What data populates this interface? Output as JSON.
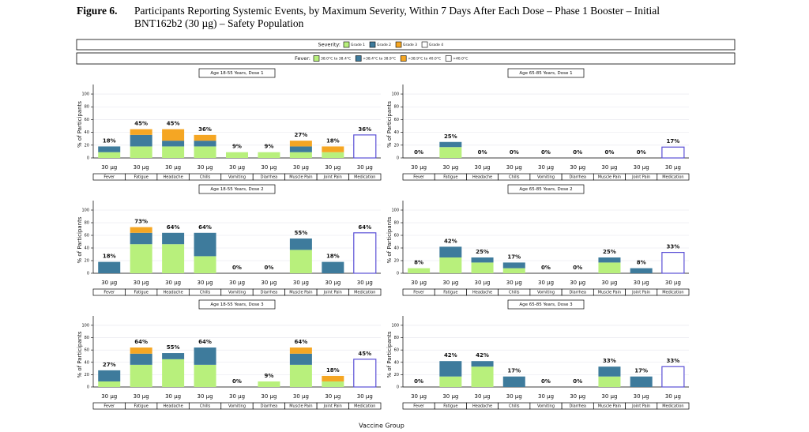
{
  "figure": {
    "label": "Figure 6.",
    "caption": "Participants Reporting Systemic Events, by Maximum Severity, Within 7 Days After Each Dose – Phase 1 Booster – Initial BNT162b2 (30 µg) – Safety Population"
  },
  "legend": {
    "severity": {
      "label": "Severity:",
      "items": [
        {
          "name": "Grade 1",
          "color": "#b8f07c"
        },
        {
          "name": "Grade 2",
          "color": "#3e7b9c"
        },
        {
          "name": "Grade 3",
          "color": "#f5a623"
        },
        {
          "name": "Grade 4",
          "color": "#ffffff"
        }
      ]
    },
    "fever": {
      "label": "Fever:",
      "items": [
        "38.0°C to 38.4°C",
        ">38.4°C to 38.9°C",
        ">38.9°C to 40.0°C",
        ">40.0°C"
      ]
    }
  },
  "x_axis_title": "Vaccine Group",
  "chart_data": [
    {
      "type": "stacked_bar",
      "title": "Age 18-55 Years, Dose 1",
      "y_label": "% of Participants",
      "categories": [
        "Fever",
        "Fatigue",
        "Headache",
        "Chills",
        "Vomiting",
        "Diarrhea",
        "Muscle Pain",
        "Joint Pain",
        "Medication"
      ],
      "groups": [
        "30 µg",
        "30 µg",
        "30 µg",
        "30 µg",
        "30 µg",
        "30 µg",
        "30 µg",
        "30 µg",
        "30 µg"
      ],
      "ylim": [
        0,
        105
      ],
      "yticks": [
        0,
        20,
        40,
        60,
        80,
        100
      ],
      "grid": true,
      "series": [
        {
          "values": [
            9,
            18,
            18,
            18,
            9,
            9,
            9,
            9,
            null
          ]
        },
        {
          "values": [
            9,
            18,
            9,
            9,
            0,
            0,
            9,
            0,
            null
          ]
        },
        {
          "values": [
            0,
            9,
            18,
            9,
            0,
            0,
            9,
            9,
            null
          ]
        },
        {
          "color": "#5a4fd6",
          "outline": true,
          "values": [
            null,
            null,
            null,
            null,
            null,
            null,
            null,
            null,
            36
          ]
        }
      ],
      "totals": {
        "values": [
          18,
          45,
          45,
          36,
          9,
          9,
          27,
          18,
          36
        ],
        "value_labels": [
          "18%",
          "45%",
          "45%",
          "36%",
          "9%",
          "9%",
          "27%",
          "18%",
          "36%"
        ]
      }
    },
    {
      "type": "stacked_bar",
      "title": "Age 65-85 Years, Dose 1",
      "y_label": "% of Participants",
      "categories": [
        "Fever",
        "Fatigue",
        "Headache",
        "Chills",
        "Vomiting",
        "Diarrhea",
        "Muscle Pain",
        "Joint Pain",
        "Medication"
      ],
      "groups": [
        "30 µg",
        "30 µg",
        "30 µg",
        "30 µg",
        "30 µg",
        "30 µg",
        "30 µg",
        "30 µg",
        "30 µg"
      ],
      "ylim": [
        0,
        105
      ],
      "yticks": [
        0,
        20,
        40,
        60,
        80,
        100
      ],
      "grid": true,
      "series": [
        {
          "values": [
            0,
            17,
            0,
            0,
            0,
            0,
            0,
            0,
            null
          ]
        },
        {
          "values": [
            0,
            8,
            0,
            0,
            0,
            0,
            0,
            0,
            null
          ]
        },
        {
          "values": [
            0,
            0,
            0,
            0,
            0,
            0,
            0,
            0,
            null
          ]
        },
        {
          "color": "#5a4fd6",
          "outline": true,
          "values": [
            null,
            null,
            null,
            null,
            null,
            null,
            null,
            null,
            17
          ]
        }
      ],
      "totals": {
        "values": [
          0,
          25,
          0,
          0,
          0,
          0,
          0,
          0,
          17
        ],
        "value_labels": [
          "0%",
          "25%",
          "0%",
          "0%",
          "0%",
          "0%",
          "0%",
          "0%",
          "17%"
        ]
      }
    },
    {
      "type": "stacked_bar",
      "title": "Age 18-55 Years, Dose 2",
      "y_label": "% of Participants",
      "categories": [
        "Fever",
        "Fatigue",
        "Headache",
        "Chills",
        "Vomiting",
        "Diarrhea",
        "Muscle Pain",
        "Joint Pain",
        "Medication"
      ],
      "groups": [
        "30 µg",
        "30 µg",
        "30 µg",
        "30 µg",
        "30 µg",
        "30 µg",
        "30 µg",
        "30 µg",
        "30 µg"
      ],
      "ylim": [
        0,
        105
      ],
      "yticks": [
        0,
        20,
        40,
        60,
        80,
        100
      ],
      "grid": true,
      "series": [
        {
          "values": [
            0,
            46,
            46,
            27,
            0,
            0,
            37,
            0,
            null
          ]
        },
        {
          "values": [
            18,
            18,
            18,
            37,
            0,
            0,
            18,
            18,
            null
          ]
        },
        {
          "values": [
            0,
            9,
            0,
            0,
            0,
            0,
            0,
            0,
            null
          ]
        },
        {
          "color": "#5a4fd6",
          "outline": true,
          "values": [
            null,
            null,
            null,
            null,
            null,
            null,
            null,
            null,
            64
          ]
        }
      ],
      "totals": {
        "values": [
          18,
          73,
          64,
          64,
          0,
          0,
          55,
          18,
          64
        ],
        "value_labels": [
          "18%",
          "73%",
          "64%",
          "64%",
          "0%",
          "0%",
          "55%",
          "18%",
          "64%"
        ]
      }
    },
    {
      "type": "stacked_bar",
      "title": "Age 65-85 Years, Dose 2",
      "y_label": "% of Participants",
      "categories": [
        "Fever",
        "Fatigue",
        "Headache",
        "Chills",
        "Vomiting",
        "Diarrhea",
        "Muscle Pain",
        "Joint Pain",
        "Medication"
      ],
      "groups": [
        "30 µg",
        "30 µg",
        "30 µg",
        "30 µg",
        "30 µg",
        "30 µg",
        "30 µg",
        "30 µg",
        "30 µg"
      ],
      "ylim": [
        0,
        105
      ],
      "yticks": [
        0,
        20,
        40,
        60,
        80,
        100
      ],
      "grid": true,
      "series": [
        {
          "values": [
            8,
            25,
            17,
            8,
            0,
            0,
            17,
            0,
            null
          ]
        },
        {
          "values": [
            0,
            17,
            8,
            9,
            0,
            0,
            8,
            8,
            null
          ]
        },
        {
          "values": [
            0,
            0,
            0,
            0,
            0,
            0,
            0,
            0,
            null
          ]
        },
        {
          "color": "#5a4fd6",
          "outline": true,
          "values": [
            null,
            null,
            null,
            null,
            null,
            null,
            null,
            null,
            33
          ]
        }
      ],
      "totals": {
        "values": [
          8,
          42,
          25,
          17,
          0,
          0,
          25,
          8,
          33
        ],
        "value_labels": [
          "8%",
          "42%",
          "25%",
          "17%",
          "0%",
          "0%",
          "25%",
          "8%",
          "33%"
        ]
      }
    },
    {
      "type": "stacked_bar",
      "title": "Age 18-55 Years, Dose 3",
      "y_label": "% of Participants",
      "categories": [
        "Fever",
        "Fatigue",
        "Headache",
        "Chills",
        "Vomiting",
        "Diarrhea",
        "Muscle Pain",
        "Joint Pain",
        "Medication"
      ],
      "groups": [
        "30 µg",
        "30 µg",
        "30 µg",
        "30 µg",
        "30 µg",
        "30 µg",
        "30 µg",
        "30 µg",
        "30 µg"
      ],
      "ylim": [
        0,
        105
      ],
      "yticks": [
        0,
        20,
        40,
        60,
        80,
        100
      ],
      "grid": true,
      "series": [
        {
          "values": [
            9,
            36,
            45,
            36,
            0,
            9,
            36,
            9,
            null
          ]
        },
        {
          "values": [
            18,
            18,
            10,
            28,
            0,
            0,
            18,
            0,
            null
          ]
        },
        {
          "values": [
            0,
            10,
            0,
            0,
            0,
            0,
            10,
            9,
            null
          ]
        },
        {
          "color": "#5a4fd6",
          "outline": true,
          "values": [
            null,
            null,
            null,
            null,
            null,
            null,
            null,
            null,
            45
          ]
        }
      ],
      "totals": {
        "values": [
          27,
          64,
          55,
          64,
          0,
          9,
          64,
          18,
          45
        ],
        "value_labels": [
          "27%",
          "64%",
          "55%",
          "64%",
          "0%",
          "9%",
          "64%",
          "18%",
          "45%"
        ]
      }
    },
    {
      "type": "stacked_bar",
      "title": "Age 65-85 Years, Dose 3",
      "y_label": "% of Participants",
      "categories": [
        "Fever",
        "Fatigue",
        "Headache",
        "Chills",
        "Vomiting",
        "Diarrhea",
        "Muscle Pain",
        "Joint Pain",
        "Medication"
      ],
      "groups": [
        "30 µg",
        "30 µg",
        "30 µg",
        "30 µg",
        "30 µg",
        "30 µg",
        "30 µg",
        "30 µg",
        "30 µg"
      ],
      "ylim": [
        0,
        105
      ],
      "yticks": [
        0,
        20,
        40,
        60,
        80,
        100
      ],
      "grid": true,
      "series": [
        {
          "values": [
            0,
            17,
            33,
            0,
            0,
            0,
            17,
            0,
            null
          ]
        },
        {
          "values": [
            0,
            25,
            9,
            17,
            0,
            0,
            16,
            17,
            null
          ]
        },
        {
          "values": [
            0,
            0,
            0,
            0,
            0,
            0,
            0,
            0,
            null
          ]
        },
        {
          "color": "#5a4fd6",
          "outline": true,
          "values": [
            null,
            null,
            null,
            null,
            null,
            null,
            null,
            null,
            33
          ]
        }
      ],
      "totals": {
        "values": [
          0,
          42,
          42,
          17,
          0,
          0,
          33,
          17,
          33
        ],
        "value_labels": [
          "0%",
          "42%",
          "42%",
          "17%",
          "0%",
          "0%",
          "33%",
          "17%",
          "33%"
        ]
      }
    }
  ]
}
